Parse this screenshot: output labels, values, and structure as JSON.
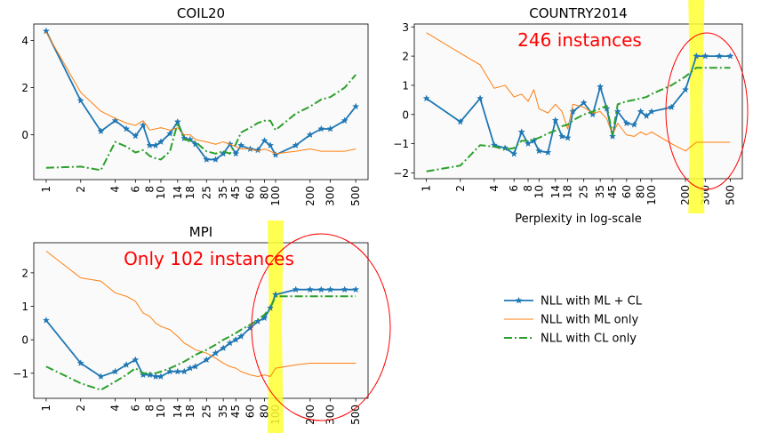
{
  "chart_data": [
    {
      "type": "line",
      "title": "COIL20",
      "xlabel": "",
      "ylabel": "",
      "x_scale": "log",
      "x_ticks": [
        1,
        2,
        4,
        6,
        8,
        10,
        14,
        18,
        25,
        35,
        45,
        60,
        80,
        100,
        200,
        300,
        500
      ],
      "y_ticks": [
        0,
        2,
        4
      ],
      "ylim": [
        -1.9,
        4.7
      ],
      "grid": false,
      "series": [
        {
          "name": "NLL with ML + CL",
          "style": "solid-star",
          "color": "#1f77b4",
          "x": [
            1,
            2,
            3,
            4,
            5,
            6,
            7,
            8,
            9,
            10,
            12,
            14,
            16,
            18,
            20,
            25,
            30,
            35,
            40,
            45,
            50,
            60,
            70,
            80,
            90,
            100,
            150,
            200,
            250,
            300,
            400,
            500
          ],
          "y": [
            4.4,
            1.45,
            0.15,
            0.6,
            0.25,
            -0.05,
            0.4,
            -0.45,
            -0.45,
            -0.3,
            0.05,
            0.55,
            -0.15,
            -0.2,
            -0.4,
            -1.05,
            -1.05,
            -0.8,
            -0.4,
            -0.8,
            -0.45,
            -0.6,
            -0.65,
            -0.25,
            -0.45,
            -0.85,
            -0.45,
            0.0,
            0.25,
            0.25,
            0.6,
            1.2
          ]
        },
        {
          "name": "NLL with ML only",
          "style": "thin",
          "color": "#ff7f0e",
          "x": [
            1,
            2,
            3,
            4,
            5,
            6,
            7,
            8,
            10,
            12,
            14,
            16,
            18,
            20,
            25,
            30,
            35,
            40,
            45,
            50,
            60,
            70,
            80,
            90,
            100,
            150,
            200,
            250,
            300,
            400,
            500
          ],
          "y": [
            4.35,
            1.8,
            1.0,
            0.7,
            0.5,
            0.4,
            0.6,
            0.2,
            0.3,
            0.2,
            0.3,
            0.0,
            0.0,
            -0.2,
            -0.3,
            -0.4,
            -0.3,
            -0.4,
            -0.5,
            -0.6,
            -0.6,
            -0.7,
            -0.6,
            -0.7,
            -0.8,
            -0.7,
            -0.6,
            -0.7,
            -0.7,
            -0.7,
            -0.6
          ]
        },
        {
          "name": "NLL with CL only",
          "style": "dashdot",
          "color": "#2ca02c",
          "x": [
            1,
            2,
            3,
            4,
            5,
            6,
            7,
            8,
            9,
            10,
            12,
            14,
            16,
            18,
            20,
            25,
            30,
            35,
            40,
            45,
            50,
            60,
            70,
            80,
            90,
            100,
            150,
            200,
            250,
            300,
            400,
            500
          ],
          "y": [
            -1.4,
            -1.35,
            -1.5,
            -0.3,
            -0.5,
            -0.75,
            -0.65,
            -0.9,
            -1.0,
            -1.05,
            -0.7,
            0.5,
            -0.2,
            -0.25,
            -0.3,
            -0.7,
            -0.8,
            -0.7,
            -0.8,
            -0.4,
            0.1,
            0.3,
            0.5,
            0.6,
            0.6,
            0.2,
            0.9,
            1.2,
            1.5,
            1.6,
            2.0,
            2.55
          ]
        }
      ]
    },
    {
      "type": "line",
      "title": "COUNTRY2014",
      "xlabel": "Perplexity in log-scale",
      "ylabel": "",
      "x_scale": "log",
      "x_ticks": [
        1,
        2,
        4,
        6,
        8,
        10,
        14,
        18,
        25,
        35,
        45,
        60,
        80,
        100,
        200,
        300,
        500
      ],
      "y_ticks": [
        -2,
        -1,
        0,
        1,
        2,
        3
      ],
      "ylim": [
        -2.2,
        3.1
      ],
      "grid": false,
      "annotation": "246 instances",
      "series": [
        {
          "name": "NLL with ML + CL",
          "style": "solid-star",
          "color": "#1f77b4",
          "x": [
            1,
            2,
            3,
            4,
            5,
            6,
            7,
            8,
            9,
            10,
            12,
            14,
            16,
            18,
            20,
            25,
            30,
            35,
            40,
            45,
            50,
            60,
            70,
            80,
            90,
            100,
            150,
            200,
            250,
            300,
            400,
            500
          ],
          "y": [
            0.55,
            -0.25,
            0.55,
            -1.05,
            -1.15,
            -1.35,
            -0.6,
            -1.0,
            -0.9,
            -1.25,
            -1.3,
            -0.2,
            -0.75,
            -0.8,
            0.1,
            0.4,
            0.0,
            0.95,
            0.2,
            -0.75,
            0.1,
            -0.3,
            -0.35,
            0.1,
            -0.05,
            0.1,
            0.25,
            0.85,
            2.0,
            2.0,
            2.0,
            2.0
          ]
        },
        {
          "name": "NLL with ML only",
          "style": "thin",
          "color": "#ff7f0e",
          "x": [
            1,
            2,
            3,
            4,
            5,
            6,
            7,
            8,
            9,
            10,
            12,
            14,
            16,
            18,
            20,
            25,
            30,
            35,
            40,
            45,
            50,
            60,
            70,
            80,
            90,
            100,
            150,
            200,
            250,
            300,
            400,
            500
          ],
          "y": [
            2.8,
            2.1,
            1.7,
            0.9,
            1.0,
            0.6,
            0.7,
            0.45,
            0.85,
            0.2,
            0.05,
            0.35,
            0.1,
            -0.5,
            0.35,
            0.25,
            0.05,
            0.1,
            -0.15,
            -0.7,
            -0.3,
            -0.7,
            -0.75,
            -0.6,
            -0.7,
            -0.6,
            -1.0,
            -1.25,
            -0.95,
            -0.95,
            -0.95,
            -0.95
          ]
        },
        {
          "name": "NLL with CL only",
          "style": "dashdot",
          "color": "#2ca02c",
          "x": [
            1,
            2,
            3,
            4,
            5,
            6,
            7,
            8,
            10,
            12,
            14,
            16,
            18,
            20,
            25,
            30,
            35,
            40,
            45,
            50,
            60,
            70,
            80,
            90,
            100,
            150,
            200,
            250,
            300,
            400,
            500
          ],
          "y": [
            -1.95,
            -1.75,
            -1.05,
            -1.1,
            -1.2,
            -1.15,
            -0.9,
            -0.9,
            -0.8,
            -0.65,
            -0.55,
            -0.4,
            -0.35,
            -0.2,
            0.0,
            0.1,
            0.2,
            0.3,
            -0.7,
            0.35,
            0.45,
            0.5,
            0.55,
            0.6,
            0.7,
            1.0,
            1.3,
            1.6,
            1.6,
            1.6,
            1.6
          ]
        }
      ]
    },
    {
      "type": "line",
      "title": "MPI",
      "xlabel": "",
      "ylabel": "",
      "x_scale": "log",
      "x_ticks": [
        1,
        2,
        4,
        6,
        8,
        10,
        14,
        18,
        25,
        35,
        45,
        60,
        80,
        100,
        200,
        300,
        500
      ],
      "y_ticks": [
        -1,
        0,
        1,
        2
      ],
      "ylim": [
        -1.75,
        2.9
      ],
      "grid": false,
      "annotation": "Only 102 instances",
      "series": [
        {
          "name": "NLL with ML + CL",
          "style": "solid-star",
          "color": "#1f77b4",
          "x": [
            1,
            2,
            3,
            4,
            5,
            6,
            7,
            8,
            9,
            10,
            12,
            14,
            16,
            18,
            20,
            25,
            30,
            35,
            40,
            45,
            50,
            60,
            70,
            80,
            90,
            100,
            150,
            200,
            250,
            300,
            400,
            500
          ],
          "y": [
            0.58,
            -0.7,
            -1.1,
            -0.95,
            -0.75,
            -0.6,
            -1.05,
            -1.05,
            -1.1,
            -1.1,
            -0.95,
            -0.95,
            -0.95,
            -0.85,
            -0.8,
            -0.6,
            -0.4,
            -0.25,
            -0.1,
            0.0,
            0.1,
            0.35,
            0.55,
            0.65,
            0.95,
            1.35,
            1.5,
            1.5,
            1.5,
            1.5,
            1.5,
            1.5
          ]
        },
        {
          "name": "NLL with ML only",
          "style": "thin",
          "color": "#ff7f0e",
          "x": [
            1,
            2,
            3,
            4,
            5,
            6,
            7,
            8,
            9,
            10,
            12,
            14,
            16,
            18,
            20,
            25,
            30,
            35,
            40,
            45,
            50,
            60,
            70,
            80,
            90,
            100,
            150,
            200,
            250,
            300,
            400,
            500
          ],
          "y": [
            2.65,
            1.85,
            1.75,
            1.4,
            1.3,
            1.15,
            0.8,
            0.7,
            0.5,
            0.4,
            0.3,
            0.1,
            -0.1,
            -0.2,
            -0.3,
            -0.4,
            -0.55,
            -0.7,
            -0.8,
            -0.85,
            -0.95,
            -1.05,
            -1.1,
            -1.05,
            -1.1,
            -0.85,
            -0.75,
            -0.7,
            -0.7,
            -0.7,
            -0.7,
            -0.7
          ]
        },
        {
          "name": "NLL with CL only",
          "style": "dashdot",
          "color": "#2ca02c",
          "x": [
            1,
            2,
            3,
            4,
            5,
            6,
            7,
            8,
            9,
            10,
            12,
            14,
            16,
            18,
            20,
            25,
            30,
            35,
            40,
            45,
            50,
            60,
            70,
            80,
            90,
            100,
            150,
            200,
            250,
            300,
            400,
            500
          ],
          "y": [
            -0.8,
            -1.3,
            -1.5,
            -1.25,
            -1.05,
            -0.85,
            -1.0,
            -1.0,
            -1.0,
            -0.95,
            -0.85,
            -0.75,
            -0.65,
            -0.55,
            -0.45,
            -0.3,
            -0.15,
            0.0,
            0.1,
            0.2,
            0.3,
            0.45,
            0.6,
            0.75,
            0.95,
            1.3,
            1.3,
            1.3,
            1.3,
            1.3,
            1.3,
            1.3
          ]
        }
      ]
    }
  ],
  "legend": {
    "items": [
      {
        "label": "NLL with ML + CL",
        "style": "solid-star",
        "color": "#1f77b4"
      },
      {
        "label": "NLL with ML only",
        "style": "thin",
        "color": "#ff7f0e"
      },
      {
        "label": "NLL with CL only",
        "style": "dashdot",
        "color": "#2ca02c"
      }
    ]
  },
  "highlight_colors": {
    "yellow_band": "#ffff33",
    "circle": "#ff0000",
    "annotation": "#ff0000"
  }
}
